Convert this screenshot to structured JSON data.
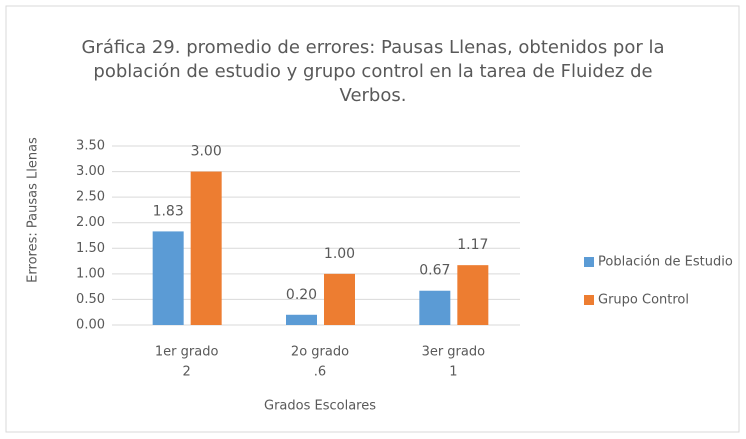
{
  "chart_data": {
    "type": "bar",
    "title": "Gráfica 29.   promedio de errores: Pausas Llenas, obtenidos por la población de estudio y grupo control en la tarea de Fluidez de Verbos.",
    "categories": [
      [
        "1er grado",
        "2"
      ],
      [
        "2o grado",
        ".6"
      ],
      [
        "3er grado",
        "1"
      ]
    ],
    "series": [
      {
        "name": "Población de Estudio",
        "color": "#5b9bd5",
        "values": [
          1.83,
          0.2,
          0.67
        ],
        "value_labels": [
          "1.83",
          "0.20",
          "0.67"
        ]
      },
      {
        "name": "Grupo Control",
        "color": "#ed7d31",
        "values": [
          3,
          1,
          1.17
        ],
        "value_labels": [
          "3.00",
          "1.00",
          "1.17"
        ]
      }
    ],
    "x_label": "Grados Escolares",
    "y_label": "Errores: Pausas Llenas",
    "ylim": [
      0,
      3.5
    ],
    "yticks": [
      {
        "value": 0,
        "label": "0.00"
      },
      {
        "value": 0.5,
        "label": "0.50"
      },
      {
        "value": 1,
        "label": "1.00"
      },
      {
        "value": 1.5,
        "label": "1.50"
      },
      {
        "value": 2,
        "label": "2.00"
      },
      {
        "value": 2.5,
        "label": "2.50"
      },
      {
        "value": 3,
        "label": "3.00"
      },
      {
        "value": 3.5,
        "label": "3.50"
      }
    ],
    "grid": true,
    "legend": "right"
  }
}
